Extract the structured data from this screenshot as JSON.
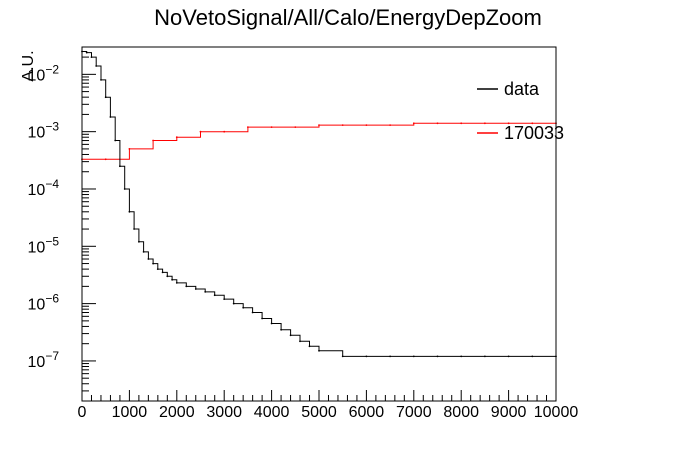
{
  "chart_data": {
    "type": "line",
    "title": "NoVetoSignal/All/Calo/EnergyDepZoom",
    "xlabel": "",
    "ylabel": "A.U.",
    "xlim": [
      0,
      10000
    ],
    "ylim": [
      2e-08,
      0.03
    ],
    "yscale": "log",
    "grid": false,
    "legend_position": "top-right",
    "x_tick_labels": [
      "0",
      "1000",
      "2000",
      "3000",
      "4000",
      "5000",
      "6000",
      "7000",
      "8000",
      "9000",
      "10000"
    ],
    "x_tick_values": [
      0,
      1000,
      2000,
      3000,
      4000,
      5000,
      6000,
      7000,
      8000,
      9000,
      10000
    ],
    "y_tick_values": [
      1e-07,
      1e-06,
      1e-05,
      0.0001,
      0.001,
      0.01
    ],
    "y_tick_labels": [
      {
        "base": "10",
        "exp": "−7"
      },
      {
        "base": "10",
        "exp": "−6"
      },
      {
        "base": "10",
        "exp": "−5"
      },
      {
        "base": "10",
        "exp": "−4"
      },
      {
        "base": "10",
        "exp": "−3"
      },
      {
        "base": "10",
        "exp": "−2"
      }
    ],
    "legend": [
      {
        "label": "data",
        "color": "#000000"
      },
      {
        "label": "170033",
        "color": "#ff0000"
      }
    ],
    "series": [
      {
        "name": "data",
        "color": "#000000",
        "x": [
          0,
          100,
          200,
          300,
          400,
          500,
          600,
          700,
          800,
          900,
          1000,
          1100,
          1200,
          1300,
          1400,
          1500,
          1600,
          1700,
          1800,
          1900,
          2000,
          2200,
          2400,
          2600,
          2800,
          3000,
          3200,
          3400,
          3600,
          3800,
          4000,
          4200,
          4400,
          4600,
          4800,
          5000,
          5500,
          6000,
          6500,
          7000,
          7500,
          8000,
          8500,
          9000,
          9500,
          10000
        ],
        "values": [
          0.025,
          0.024,
          0.02,
          0.014,
          0.008,
          0.004,
          0.0018,
          0.0007,
          0.00025,
          0.0001,
          4e-05,
          2e-05,
          1.2e-05,
          8e-06,
          6e-06,
          5e-06,
          4e-06,
          3.5e-06,
          3e-06,
          2.6e-06,
          2.3e-06,
          2e-06,
          1.8e-06,
          1.6e-06,
          1.4e-06,
          1.2e-06,
          1e-06,
          8.5e-07,
          7e-07,
          5.5e-07,
          4.5e-07,
          3.5e-07,
          2.8e-07,
          2.2e-07,
          1.8e-07,
          1.5e-07,
          1.2e-07,
          1.2e-07,
          1.2e-07,
          1.2e-07,
          1.2e-07,
          1.2e-07,
          1.2e-07,
          1.2e-07,
          1.2e-07,
          1.2e-07
        ]
      },
      {
        "name": "170033",
        "color": "#ff0000",
        "x": [
          0,
          500,
          1000,
          1500,
          2000,
          2500,
          3000,
          3500,
          4000,
          4500,
          5000,
          5500,
          6000,
          6500,
          7000,
          7500,
          8000,
          8500,
          9000,
          9500,
          10000
        ],
        "values": [
          0.00033,
          0.00033,
          0.0005,
          0.0007,
          0.0008,
          0.001,
          0.001,
          0.0012,
          0.0012,
          0.0012,
          0.0013,
          0.0013,
          0.0013,
          0.0013,
          0.0014,
          0.0014,
          0.0014,
          0.0014,
          0.0014,
          0.0014,
          0.0014
        ]
      }
    ]
  }
}
